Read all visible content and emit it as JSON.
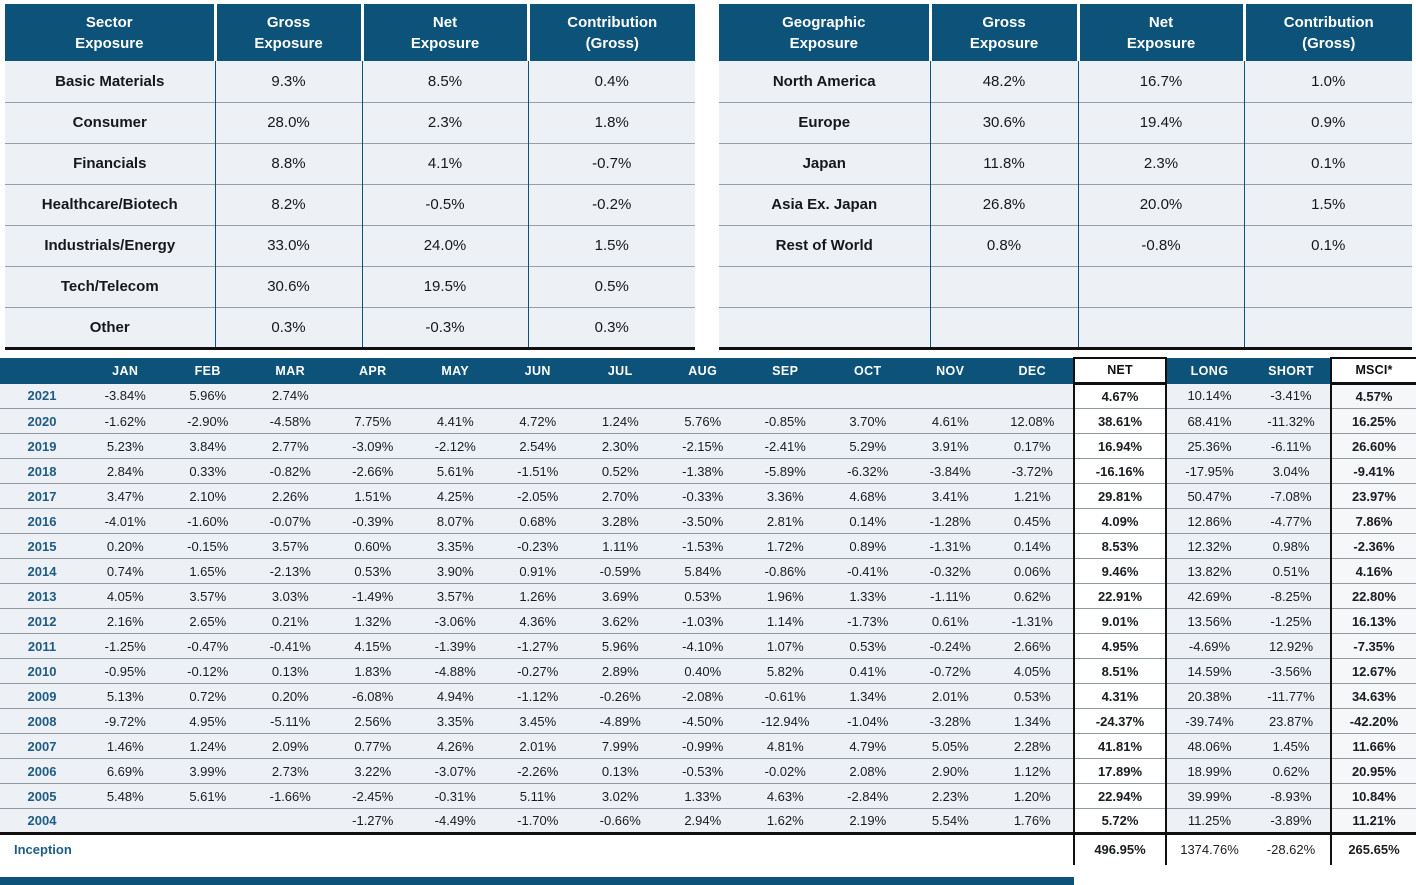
{
  "colors": {
    "header_blue": "#0d5278",
    "row_bg": "#edf0f4",
    "msci_bg": "#f5f7f9",
    "year_blue": "#1e5c86",
    "separator_gray": "#919aa2",
    "border_black": "#101010"
  },
  "sector_table": {
    "headers": [
      {
        "l1": "Sector",
        "l2": "Exposure"
      },
      {
        "l1": "Gross",
        "l2": "Exposure"
      },
      {
        "l1": "Net",
        "l2": "Exposure"
      },
      {
        "l1": "Contribution",
        "l2": "(Gross)"
      }
    ],
    "rows": [
      {
        "label": "Basic Materials",
        "gross": "9.3%",
        "net": "8.5%",
        "contribution": "0.4%"
      },
      {
        "label": "Consumer",
        "gross": "28.0%",
        "net": "2.3%",
        "contribution": "1.8%"
      },
      {
        "label": "Financials",
        "gross": "8.8%",
        "net": "4.1%",
        "contribution": "-0.7%"
      },
      {
        "label": "Healthcare/Biotech",
        "gross": "8.2%",
        "net": "-0.5%",
        "contribution": "-0.2%"
      },
      {
        "label": "Industrials/Energy",
        "gross": "33.0%",
        "net": "24.0%",
        "contribution": "1.5%"
      },
      {
        "label": "Tech/Telecom",
        "gross": "30.6%",
        "net": "19.5%",
        "contribution": "0.5%"
      },
      {
        "label": "Other",
        "gross": "0.3%",
        "net": "-0.3%",
        "contribution": "0.3%"
      }
    ]
  },
  "geographic_table": {
    "headers": [
      {
        "l1": "Geographic",
        "l2": "Exposure"
      },
      {
        "l1": "Gross",
        "l2": "Exposure"
      },
      {
        "l1": "Net",
        "l2": "Exposure"
      },
      {
        "l1": "Contribution",
        "l2": "(Gross)"
      }
    ],
    "rows": [
      {
        "label": "North America",
        "gross": "48.2%",
        "net": "16.7%",
        "contribution": "1.0%"
      },
      {
        "label": "Europe",
        "gross": "30.6%",
        "net": "19.4%",
        "contribution": "0.9%"
      },
      {
        "label": "Japan",
        "gross": "11.8%",
        "net": "2.3%",
        "contribution": "0.1%"
      },
      {
        "label": "Asia Ex. Japan",
        "gross": "26.8%",
        "net": "20.0%",
        "contribution": "1.5%"
      },
      {
        "label": "Rest of World",
        "gross": "0.8%",
        "net": "-0.8%",
        "contribution": "0.1%"
      },
      {
        "label": "",
        "gross": "",
        "net": "",
        "contribution": ""
      },
      {
        "label": "",
        "gross": "",
        "net": "",
        "contribution": ""
      }
    ]
  },
  "monthly_table": {
    "year_header": "",
    "month_headers": [
      "JAN",
      "FEB",
      "MAR",
      "APR",
      "MAY",
      "JUN",
      "JUL",
      "AUG",
      "SEP",
      "OCT",
      "NOV",
      "DEC"
    ],
    "summary_headers": {
      "net": "NET",
      "long": "LONG",
      "short": "SHORT",
      "msci": "MSCI*"
    },
    "rows": [
      {
        "year": "2021",
        "months": [
          "-3.84%",
          "5.96%",
          "2.74%",
          "",
          "",
          "",
          "",
          "",
          "",
          "",
          "",
          ""
        ],
        "net": "4.67%",
        "long": "10.14%",
        "short": "-3.41%",
        "msci": "4.57%"
      },
      {
        "year": "2020",
        "months": [
          "-1.62%",
          "-2.90%",
          "-4.58%",
          "7.75%",
          "4.41%",
          "4.72%",
          "1.24%",
          "5.76%",
          "-0.85%",
          "3.70%",
          "4.61%",
          "12.08%"
        ],
        "net": "38.61%",
        "long": "68.41%",
        "short": "-11.32%",
        "msci": "16.25%"
      },
      {
        "year": "2019",
        "months": [
          "5.23%",
          "3.84%",
          "2.77%",
          "-3.09%",
          "-2.12%",
          "2.54%",
          "2.30%",
          "-2.15%",
          "-2.41%",
          "5.29%",
          "3.91%",
          "0.17%"
        ],
        "net": "16.94%",
        "long": "25.36%",
        "short": "-6.11%",
        "msci": "26.60%"
      },
      {
        "year": "2018",
        "months": [
          "2.84%",
          "0.33%",
          "-0.82%",
          "-2.66%",
          "5.61%",
          "-1.51%",
          "0.52%",
          "-1.38%",
          "-5.89%",
          "-6.32%",
          "-3.84%",
          "-3.72%"
        ],
        "net": "-16.16%",
        "long": "-17.95%",
        "short": "3.04%",
        "msci": "-9.41%"
      },
      {
        "year": "2017",
        "months": [
          "3.47%",
          "2.10%",
          "2.26%",
          "1.51%",
          "4.25%",
          "-2.05%",
          "2.70%",
          "-0.33%",
          "3.36%",
          "4.68%",
          "3.41%",
          "1.21%"
        ],
        "net": "29.81%",
        "long": "50.47%",
        "short": "-7.08%",
        "msci": "23.97%"
      },
      {
        "year": "2016",
        "months": [
          "-4.01%",
          "-1.60%",
          "-0.07%",
          "-0.39%",
          "8.07%",
          "0.68%",
          "3.28%",
          "-3.50%",
          "2.81%",
          "0.14%",
          "-1.28%",
          "0.45%"
        ],
        "net": "4.09%",
        "long": "12.86%",
        "short": "-4.77%",
        "msci": "7.86%"
      },
      {
        "year": "2015",
        "months": [
          "0.20%",
          "-0.15%",
          "3.57%",
          "0.60%",
          "3.35%",
          "-0.23%",
          "1.11%",
          "-1.53%",
          "1.72%",
          "0.89%",
          "-1.31%",
          "0.14%"
        ],
        "net": "8.53%",
        "long": "12.32%",
        "short": "0.98%",
        "msci": "-2.36%"
      },
      {
        "year": "2014",
        "months": [
          "0.74%",
          "1.65%",
          "-2.13%",
          "0.53%",
          "3.90%",
          "0.91%",
          "-0.59%",
          "5.84%",
          "-0.86%",
          "-0.41%",
          "-0.32%",
          "0.06%"
        ],
        "net": "9.46%",
        "long": "13.82%",
        "short": "0.51%",
        "msci": "4.16%"
      },
      {
        "year": "2013",
        "months": [
          "4.05%",
          "3.57%",
          "3.03%",
          "-1.49%",
          "3.57%",
          "1.26%",
          "3.69%",
          "0.53%",
          "1.96%",
          "1.33%",
          "-1.11%",
          "0.62%"
        ],
        "net": "22.91%",
        "long": "42.69%",
        "short": "-8.25%",
        "msci": "22.80%"
      },
      {
        "year": "2012",
        "months": [
          "2.16%",
          "2.65%",
          "0.21%",
          "1.32%",
          "-3.06%",
          "4.36%",
          "3.62%",
          "-1.03%",
          "1.14%",
          "-1.73%",
          "0.61%",
          "-1.31%"
        ],
        "net": "9.01%",
        "long": "13.56%",
        "short": "-1.25%",
        "msci": "16.13%"
      },
      {
        "year": "2011",
        "months": [
          "-1.25%",
          "-0.47%",
          "-0.41%",
          "4.15%",
          "-1.39%",
          "-1.27%",
          "5.96%",
          "-4.10%",
          "1.07%",
          "0.53%",
          "-0.24%",
          "2.66%"
        ],
        "net": "4.95%",
        "long": "-4.69%",
        "short": "12.92%",
        "msci": "-7.35%"
      },
      {
        "year": "2010",
        "months": [
          "-0.95%",
          "-0.12%",
          "0.13%",
          "1.83%",
          "-4.88%",
          "-0.27%",
          "2.89%",
          "0.40%",
          "5.82%",
          "0.41%",
          "-0.72%",
          "4.05%"
        ],
        "net": "8.51%",
        "long": "14.59%",
        "short": "-3.56%",
        "msci": "12.67%"
      },
      {
        "year": "2009",
        "months": [
          "5.13%",
          "0.72%",
          "0.20%",
          "-6.08%",
          "4.94%",
          "-1.12%",
          "-0.26%",
          "-2.08%",
          "-0.61%",
          "1.34%",
          "2.01%",
          "0.53%"
        ],
        "net": "4.31%",
        "long": "20.38%",
        "short": "-11.77%",
        "msci": "34.63%"
      },
      {
        "year": "2008",
        "months": [
          "-9.72%",
          "4.95%",
          "-5.11%",
          "2.56%",
          "3.35%",
          "3.45%",
          "-4.89%",
          "-4.50%",
          "-12.94%",
          "-1.04%",
          "-3.28%",
          "1.34%"
        ],
        "net": "-24.37%",
        "long": "-39.74%",
        "short": "23.87%",
        "msci": "-42.20%"
      },
      {
        "year": "2007",
        "months": [
          "1.46%",
          "1.24%",
          "2.09%",
          "0.77%",
          "4.26%",
          "2.01%",
          "7.99%",
          "-0.99%",
          "4.81%",
          "4.79%",
          "5.05%",
          "2.28%"
        ],
        "net": "41.81%",
        "long": "48.06%",
        "short": "1.45%",
        "msci": "11.66%"
      },
      {
        "year": "2006",
        "months": [
          "6.69%",
          "3.99%",
          "2.73%",
          "3.22%",
          "-3.07%",
          "-2.26%",
          "0.13%",
          "-0.53%",
          "-0.02%",
          "2.08%",
          "2.90%",
          "1.12%"
        ],
        "net": "17.89%",
        "long": "18.99%",
        "short": "0.62%",
        "msci": "20.95%"
      },
      {
        "year": "2005",
        "months": [
          "5.48%",
          "5.61%",
          "-1.66%",
          "-2.45%",
          "-0.31%",
          "5.11%",
          "3.02%",
          "1.33%",
          "4.63%",
          "-2.84%",
          "2.23%",
          "1.20%"
        ],
        "net": "22.94%",
        "long": "39.99%",
        "short": "-8.93%",
        "msci": "10.84%"
      },
      {
        "year": "2004",
        "months": [
          "",
          "",
          "",
          "-1.27%",
          "-4.49%",
          "-1.70%",
          "-0.66%",
          "2.94%",
          "1.62%",
          "2.19%",
          "5.54%",
          "1.76%"
        ],
        "net": "5.72%",
        "long": "11.25%",
        "short": "-3.89%",
        "msci": "11.21%"
      }
    ],
    "inception": {
      "label": "Inception",
      "net": "496.95%",
      "long": "1374.76%",
      "short": "-28.62%",
      "msci": "265.65%"
    }
  }
}
